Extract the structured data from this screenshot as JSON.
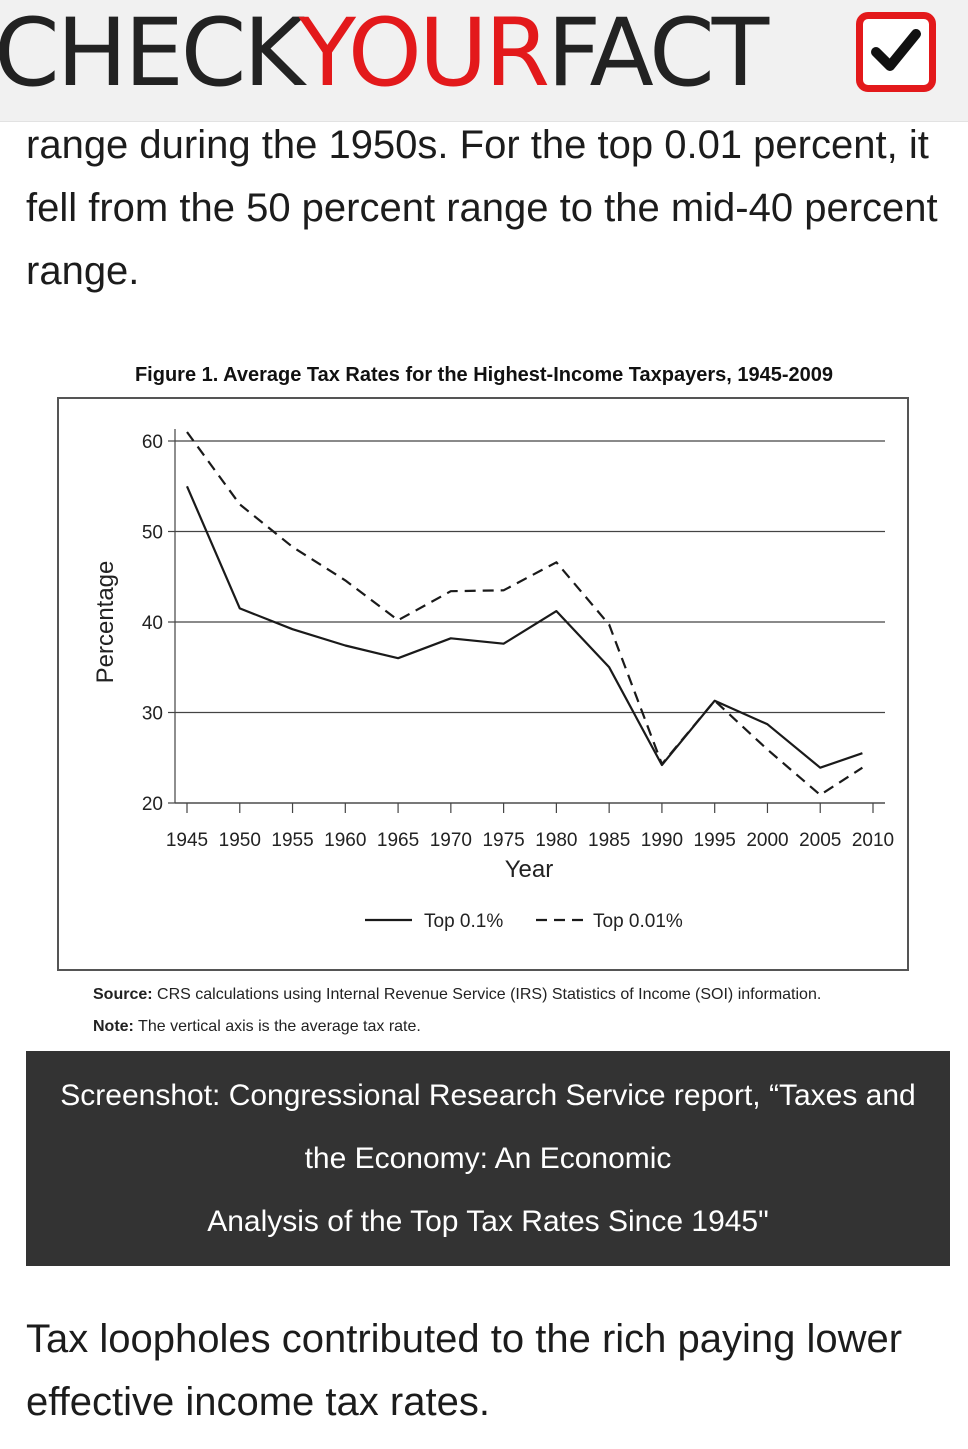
{
  "header": {
    "logo_part1": "CHECK",
    "logo_part2": "YOUR",
    "logo_part3": "FACT",
    "accent_color": "#e3191b"
  },
  "article": {
    "para_top": "range during the 1950s. For the top 0.01 percent, it fell from the 50 percent range to the mid-40 percent range.",
    "para_bottom": "Tax loopholes contributed to the rich paying lower effective income tax rates."
  },
  "figure": {
    "title": "Figure 1. Average Tax Rates for the Highest-Income Taxpayers, 1945-2009",
    "source_label": "Source:",
    "source_text": "CRS calculations using Internal Revenue Service (IRS) Statistics of Income (SOI) information.",
    "note_label": "Note:",
    "note_text": "The vertical axis is the average tax rate."
  },
  "caption": {
    "line1": "Screenshot: Congressional Research Service report, “Taxes and",
    "line2": "the Economy: An Economic",
    "line3": "Analysis of the Top Tax Rates Since 1945\""
  },
  "chart_data": {
    "type": "line",
    "title": "Figure 1. Average Tax Rates for the Highest-Income Taxpayers, 1945-2009",
    "xlabel": "Year",
    "ylabel": "Percentage",
    "xlim": [
      1945,
      2010
    ],
    "ylim": [
      20,
      60
    ],
    "x_ticks": [
      "1945",
      "1950",
      "1955",
      "1960",
      "1965",
      "1970",
      "1975",
      "1980",
      "1985",
      "1990",
      "1995",
      "2000",
      "2005",
      "2010"
    ],
    "y_ticks": [
      "20",
      "30",
      "40",
      "50",
      "60"
    ],
    "grid": "horizontal",
    "legend_position": "bottom",
    "series": [
      {
        "name": "Top 0.1%",
        "style": "solid",
        "x": [
          1945,
          1950,
          1955,
          1960,
          1965,
          1970,
          1975,
          1980,
          1985,
          1990,
          1995,
          2000,
          2005,
          2009
        ],
        "values": [
          55.0,
          41.5,
          39.2,
          37.4,
          36.0,
          38.2,
          37.6,
          41.2,
          35.0,
          24.2,
          31.3,
          28.7,
          23.9,
          25.5
        ]
      },
      {
        "name": "Top 0.01%",
        "style": "dashed",
        "x": [
          1945,
          1950,
          1955,
          1960,
          1965,
          1970,
          1975,
          1980,
          1985,
          1990,
          1995,
          2000,
          2005,
          2009
        ],
        "values": [
          61.0,
          53.0,
          48.3,
          44.6,
          40.2,
          43.4,
          43.5,
          46.6,
          39.7,
          24.3,
          31.3,
          25.9,
          20.9,
          23.9
        ]
      }
    ]
  }
}
